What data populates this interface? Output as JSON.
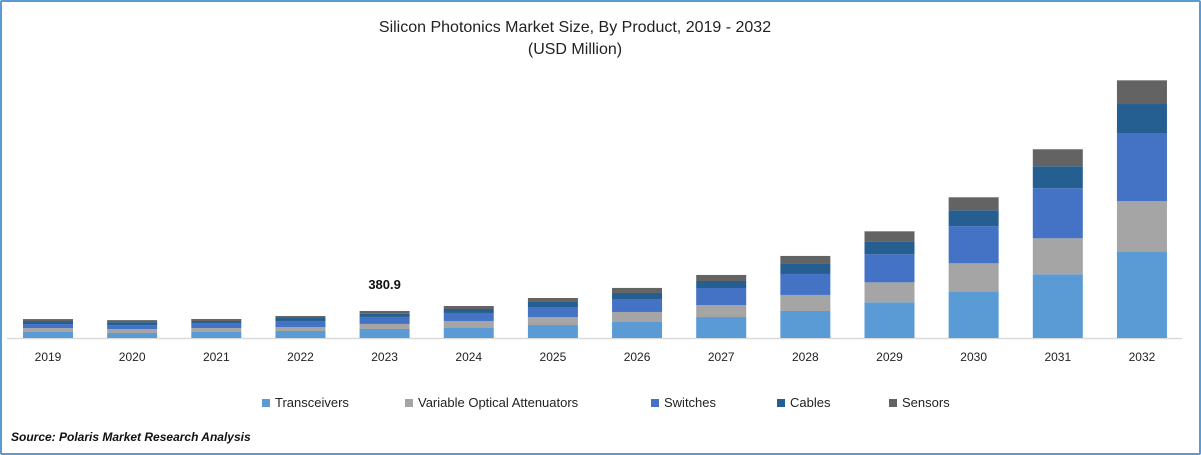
{
  "chart_data": {
    "type": "bar",
    "stacked": true,
    "title": "Silicon Photonics Market Size, By Product, 2019 - 2032",
    "subtitle": "(USD Million)",
    "xlabel": "",
    "ylabel": "",
    "categories": [
      "2019",
      "2020",
      "2021",
      "2022",
      "2023",
      "2024",
      "2025",
      "2026",
      "2027",
      "2028",
      "2029",
      "2030",
      "2031",
      "2032"
    ],
    "series": [
      {
        "name": "Transceivers",
        "color": "#5b9bd5",
        "values": [
          85,
          70,
          85,
          99,
          127,
          141,
          183,
          226,
          296,
          381,
          503,
          658,
          898,
          1222
        ]
      },
      {
        "name": "Variable Optical Attenuators",
        "color": "#a5a5a5",
        "values": [
          56,
          56,
          56,
          56,
          71,
          99,
          113,
          141,
          169,
          226,
          282,
          395,
          508,
          709
        ]
      },
      {
        "name": "Switches",
        "color": "#4472c4",
        "values": [
          56,
          56,
          71,
          85,
          99,
          113,
          141,
          183,
          240,
          296,
          395,
          522,
          705,
          959
        ]
      },
      {
        "name": "Cables",
        "color": "#255e91",
        "values": [
          42,
          42,
          28,
          42,
          45,
          56,
          71,
          85,
          99,
          141,
          179,
          226,
          310,
          409
        ]
      },
      {
        "name": "Sensors",
        "color": "#636363",
        "values": [
          28,
          28,
          28,
          28,
          39,
          42,
          56,
          71,
          85,
          113,
          145,
          183,
          240,
          334
        ]
      }
    ],
    "annotations": [
      {
        "category": "2023",
        "text": "380.9"
      }
    ],
    "ylim": [
      0,
      3900
    ],
    "grid": false,
    "legend_position": "bottom"
  },
  "source": "Source: Polaris  Market Research Analysis"
}
